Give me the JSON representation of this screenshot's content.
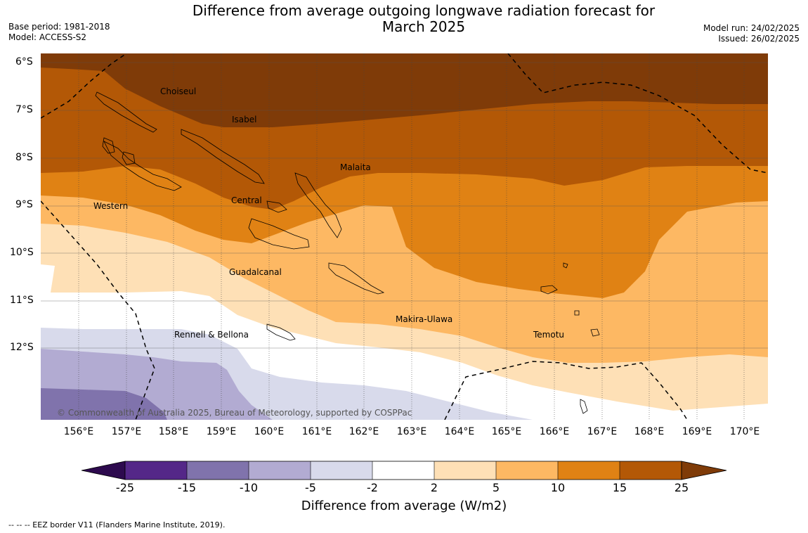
{
  "title_line1": "Difference from average outgoing longwave radiation forecast for",
  "title_line2": "March 2025",
  "base_period": "Base period: 1981-2018",
  "model": "Model: ACCESS-S2",
  "model_run": "Model run: 24/02/2025",
  "issued": "Issued: 26/02/2025",
  "lat_labels": [
    "6°S",
    "7°S",
    "8°S",
    "9°S",
    "10°S",
    "11°S",
    "12°S"
  ],
  "lon_labels": [
    "156°E",
    "157°E",
    "158°E",
    "159°E",
    "160°E",
    "161°E",
    "162°E",
    "163°E",
    "164°E",
    "165°E",
    "166°E",
    "167°E",
    "168°E",
    "169°E",
    "170°E"
  ],
  "regions": {
    "choiseul": "Choiseul",
    "isabel": "Isabel",
    "malaita": "Malaita",
    "western": "Western",
    "central": "Central",
    "guadalcanal": "Guadalcanal",
    "makira_ulawa": "Makira-Ulawa",
    "rennell_bellona": "Rennell & Bellona",
    "temotu": "Temotu"
  },
  "copyright": "© Commonwealth of Australia 2025, Bureau of Meteorology, supported by COSPPac",
  "colorbar": {
    "ticks": [
      "-25",
      "-15",
      "-10",
      "-5",
      "-2",
      "2",
      "5",
      "10",
      "15",
      "25"
    ],
    "colors": {
      "below_-25": "#2d0a4e",
      "-25_-15": "#542788",
      "-15_-10": "#8073ac",
      "-10_-5": "#b2abd2",
      "-5_-2": "#d8daeb",
      "-2_2": "#ffffff",
      "2_5": "#fee0b6",
      "5_10": "#fdb863",
      "10_15": "#e08214",
      "15_25": "#b35806",
      "above_25": "#7f3b08"
    },
    "label": "Difference from average (W/m2)"
  },
  "footnote": "--  --  -- EEZ border V11 (Flanders Marine Institute, 2019)."
}
